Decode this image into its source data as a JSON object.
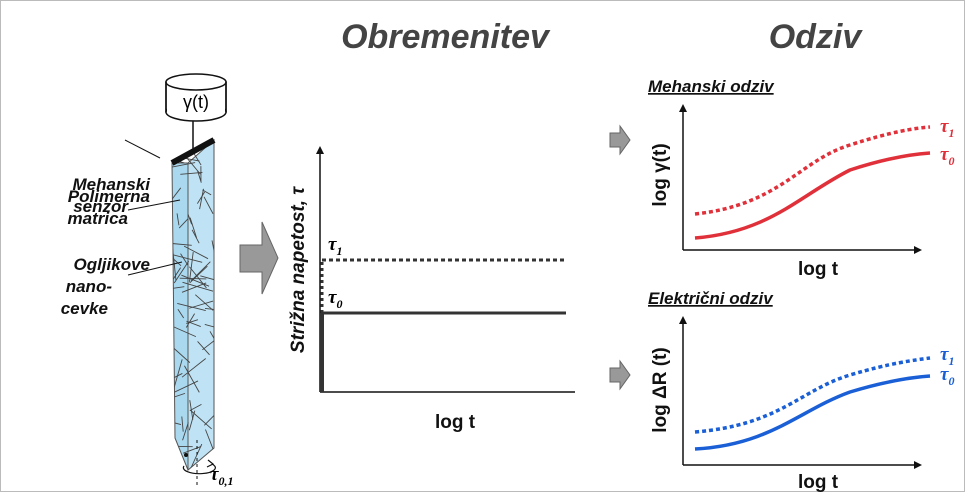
{
  "headings": {
    "load": "Obremenitev",
    "response": "Odziv"
  },
  "specimen": {
    "gauge": "γ(t)",
    "sensor": [
      "Mehanski",
      "senzor"
    ],
    "matrix": [
      "Polimerna",
      "matrica"
    ],
    "nanotubes": [
      "Ogljikove",
      "nano-",
      "cevke"
    ],
    "torque": {
      "symbol": "τ",
      "subscript": "0,1"
    }
  },
  "load_plot": {
    "y_label": "Strižna napetost, τ",
    "x_label": "log t",
    "tau1": {
      "symbol": "τ",
      "subscript": "1"
    },
    "tau0": {
      "symbol": "τ",
      "subscript": "0"
    }
  },
  "mechanical_plot": {
    "title": "Mehanski odziv",
    "y_label": "log γ(t)",
    "x_label": "log t",
    "tau1": {
      "symbol": "τ",
      "subscript": "1"
    },
    "tau0": {
      "symbol": "τ",
      "subscript": "0"
    }
  },
  "electrical_plot": {
    "title": "Električni odziv",
    "y_label": "log ΔR (t)",
    "x_label": "log t",
    "tau1": {
      "symbol": "τ",
      "subscript": "1"
    },
    "tau0": {
      "symbol": "τ",
      "subscript": "0"
    }
  }
}
